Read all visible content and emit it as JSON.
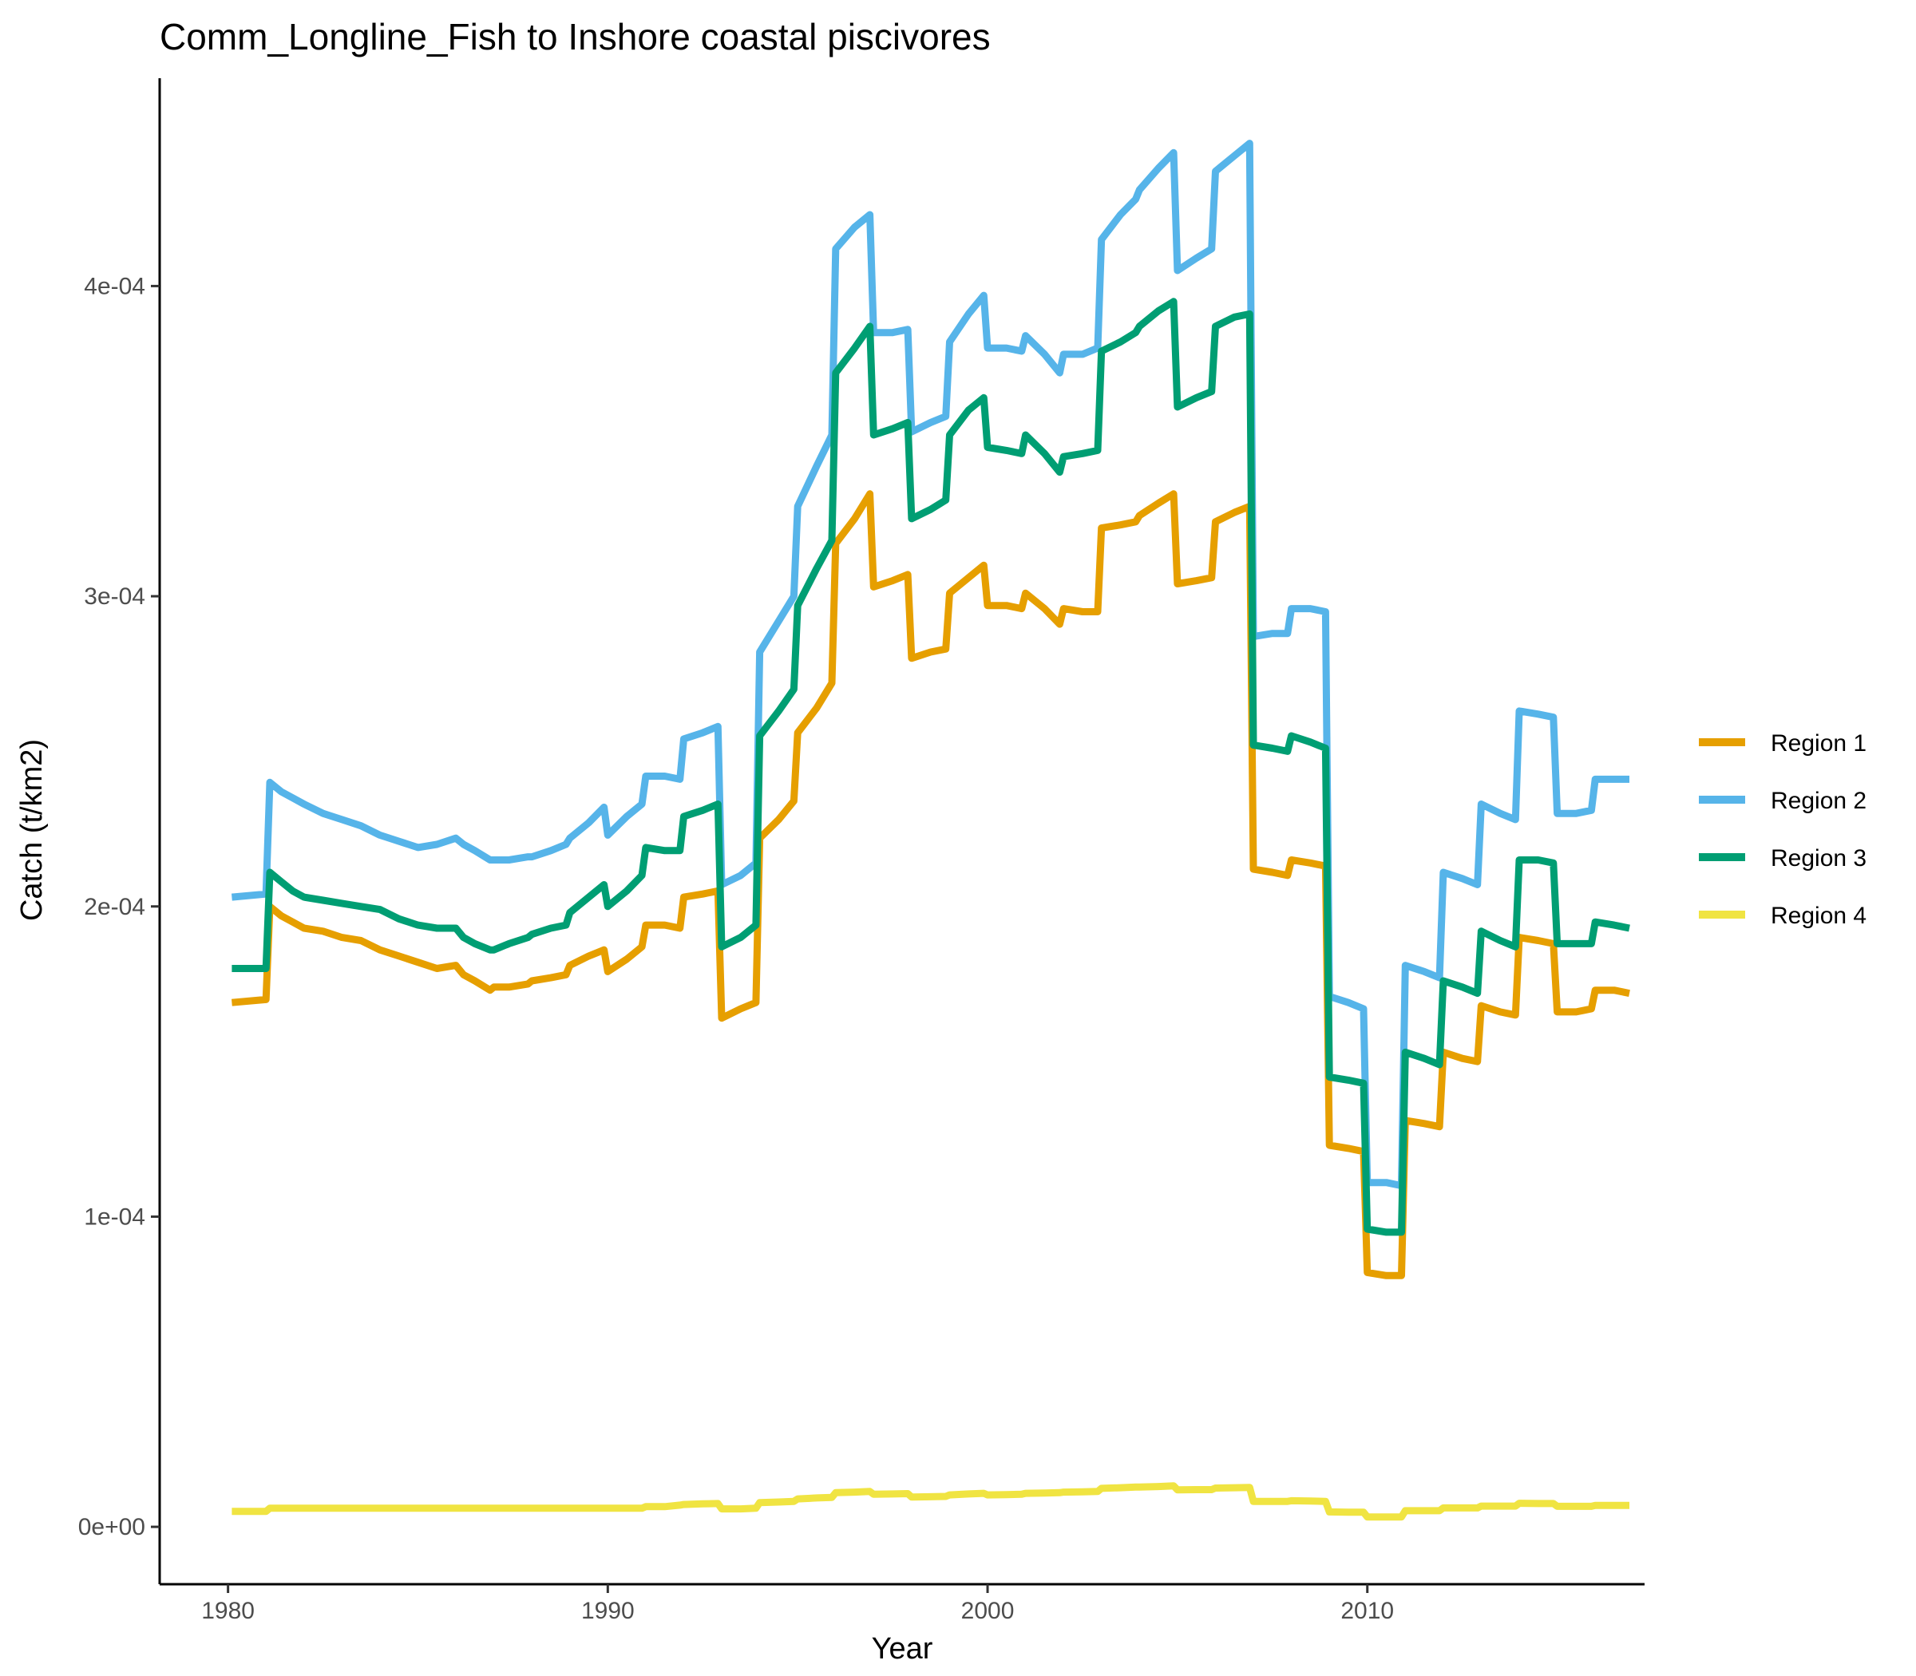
{
  "chart_data": {
    "type": "line",
    "title": "Comm_Longline_Fish to Inshore coastal piscivores",
    "xlabel": "Year",
    "ylabel": "Catch (t/km2)",
    "xlim": [
      1978.2,
      2017.3
    ],
    "ylim": [
      -1.85e-05,
      0.000467
    ],
    "x_ticks": [
      1980,
      1990,
      2000,
      2010
    ],
    "x_tick_labels": [
      "1980",
      "1990",
      "2000",
      "2010"
    ],
    "y_ticks": [
      0,
      0.0001,
      0.0002,
      0.0003,
      0.0004
    ],
    "y_tick_labels": [
      "0e+00",
      "1e-04",
      "2e-04",
      "3e-04",
      "4e-04"
    ],
    "grid": false,
    "legend_position": "right",
    "x": [
      1980.1,
      1981.0,
      1981.1,
      1981.4,
      1981.7,
      1982.0,
      1982.5,
      1983.0,
      1983.5,
      1984.0,
      1984.5,
      1985.0,
      1985.5,
      1986.0,
      1986.2,
      1986.5,
      1986.9,
      1987.0,
      1987.4,
      1987.9,
      1988.0,
      1988.5,
      1988.9,
      1989.0,
      1989.5,
      1989.9,
      1990.0,
      1990.5,
      1990.9,
      1991.0,
      1991.5,
      1991.9,
      1992.0,
      1992.5,
      1992.9,
      1993.0,
      1993.5,
      1993.9,
      1994.0,
      1994.5,
      1994.9,
      1995.0,
      1995.5,
      1995.9,
      1996.0,
      1996.5,
      1996.9,
      1997.0,
      1997.5,
      1997.9,
      1998.0,
      1998.5,
      1998.9,
      1999.0,
      1999.5,
      1999.9,
      2000.0,
      2000.5,
      2000.9,
      2001.0,
      2001.5,
      2001.9,
      2002.0,
      2002.5,
      2002.9,
      2003.0,
      2003.5,
      2003.9,
      2004.0,
      2004.5,
      2004.9,
      2005.0,
      2005.5,
      2005.9,
      2006.0,
      2006.5,
      2006.9,
      2007.0,
      2007.5,
      2007.9,
      2008.0,
      2008.5,
      2008.9,
      2009.0,
      2009.5,
      2009.9,
      2010.0,
      2010.5,
      2010.9,
      2011.0,
      2011.5,
      2011.9,
      2012.0,
      2012.5,
      2012.9,
      2013.0,
      2013.5,
      2013.9,
      2014.0,
      2014.5,
      2014.9,
      2015.0,
      2015.5,
      2015.9,
      2016.0,
      2016.5,
      2016.9
    ],
    "series": [
      {
        "name": "Region 1",
        "color": "#E69F00",
        "values": [
          0.000169,
          0.00017,
          0.0002,
          0.000197,
          0.000195,
          0.000193,
          0.000192,
          0.00019,
          0.000189,
          0.000186,
          0.000184,
          0.000182,
          0.00018,
          0.000181,
          0.000178,
          0.000176,
          0.000173,
          0.000174,
          0.000174,
          0.000175,
          0.000176,
          0.000177,
          0.000178,
          0.000181,
          0.000184,
          0.000186,
          0.000179,
          0.000183,
          0.000187,
          0.000194,
          0.000194,
          0.000193,
          0.000203,
          0.000204,
          0.000205,
          0.000164,
          0.000167,
          0.000169,
          0.000222,
          0.000228,
          0.000234,
          0.000256,
          0.000264,
          0.000272,
          0.000317,
          0.000325,
          0.000333,
          0.000303,
          0.000305,
          0.000307,
          0.00028,
          0.000282,
          0.000283,
          0.000301,
          0.000306,
          0.00031,
          0.000297,
          0.000297,
          0.000296,
          0.000301,
          0.000296,
          0.000291,
          0.000296,
          0.000295,
          0.000295,
          0.000322,
          0.000323,
          0.000324,
          0.000326,
          0.00033,
          0.000333,
          0.000304,
          0.000305,
          0.000306,
          0.000324,
          0.000327,
          0.000329,
          0.000212,
          0.000211,
          0.00021,
          0.000215,
          0.000214,
          0.000213,
          0.000123,
          0.000122,
          0.000121,
          8.2e-05,
          8.1e-05,
          8.1e-05,
          0.000131,
          0.00013,
          0.000129,
          0.000153,
          0.000151,
          0.00015,
          0.000168,
          0.000166,
          0.000165,
          0.00019,
          0.000189,
          0.000188,
          0.000166,
          0.000166,
          0.000167,
          0.000173,
          0.000173,
          0.000172
        ]
      },
      {
        "name": "Region 2",
        "color": "#56B4E9",
        "values": [
          0.000203,
          0.000204,
          0.00024,
          0.000237,
          0.000235,
          0.000233,
          0.00023,
          0.000228,
          0.000226,
          0.000223,
          0.000221,
          0.000219,
          0.00022,
          0.000222,
          0.00022,
          0.000218,
          0.000215,
          0.000215,
          0.000215,
          0.000216,
          0.000216,
          0.000218,
          0.00022,
          0.000222,
          0.000227,
          0.000232,
          0.000223,
          0.000229,
          0.000233,
          0.000242,
          0.000242,
          0.000241,
          0.000254,
          0.000256,
          0.000258,
          0.000207,
          0.00021,
          0.000214,
          0.000282,
          0.000292,
          0.0003,
          0.000329,
          0.000342,
          0.000352,
          0.000412,
          0.000419,
          0.000423,
          0.000385,
          0.000385,
          0.000386,
          0.000353,
          0.000356,
          0.000358,
          0.000382,
          0.000391,
          0.000397,
          0.00038,
          0.00038,
          0.000379,
          0.000384,
          0.000378,
          0.000372,
          0.000378,
          0.000378,
          0.00038,
          0.000415,
          0.000423,
          0.000428,
          0.000431,
          0.000438,
          0.000443,
          0.000405,
          0.000409,
          0.000412,
          0.000437,
          0.000442,
          0.000446,
          0.000287,
          0.000288,
          0.000288,
          0.000296,
          0.000296,
          0.000295,
          0.000171,
          0.000169,
          0.000167,
          0.000111,
          0.000111,
          0.00011,
          0.000181,
          0.000179,
          0.000177,
          0.000211,
          0.000209,
          0.000207,
          0.000233,
          0.00023,
          0.000228,
          0.000263,
          0.000262,
          0.000261,
          0.00023,
          0.00023,
          0.000231,
          0.000241,
          0.000241,
          0.000241
        ]
      },
      {
        "name": "Region 3",
        "color": "#009E73",
        "values": [
          0.00018,
          0.00018,
          0.000211,
          0.000208,
          0.000205,
          0.000203,
          0.000202,
          0.000201,
          0.0002,
          0.000199,
          0.000196,
          0.000194,
          0.000193,
          0.000193,
          0.00019,
          0.000188,
          0.000186,
          0.000186,
          0.000188,
          0.00019,
          0.000191,
          0.000193,
          0.000194,
          0.000198,
          0.000203,
          0.000207,
          0.0002,
          0.000205,
          0.00021,
          0.000219,
          0.000218,
          0.000218,
          0.000229,
          0.000231,
          0.000233,
          0.000187,
          0.00019,
          0.000194,
          0.000255,
          0.000263,
          0.00027,
          0.000297,
          0.000309,
          0.000318,
          0.000372,
          0.00038,
          0.000387,
          0.000352,
          0.000354,
          0.000356,
          0.000325,
          0.000328,
          0.000331,
          0.000352,
          0.00036,
          0.000364,
          0.000348,
          0.000347,
          0.000346,
          0.000352,
          0.000346,
          0.00034,
          0.000345,
          0.000346,
          0.000347,
          0.000379,
          0.000382,
          0.000385,
          0.000387,
          0.000392,
          0.000395,
          0.000361,
          0.000364,
          0.000366,
          0.000387,
          0.00039,
          0.000391,
          0.000252,
          0.000251,
          0.00025,
          0.000255,
          0.000253,
          0.000251,
          0.000145,
          0.000144,
          0.000143,
          9.6e-05,
          9.5e-05,
          9.5e-05,
          0.000153,
          0.000151,
          0.000149,
          0.000176,
          0.000174,
          0.000172,
          0.000192,
          0.000189,
          0.000187,
          0.000215,
          0.000215,
          0.000214,
          0.000188,
          0.000188,
          0.000188,
          0.000195,
          0.000194,
          0.000193
        ]
      },
      {
        "name": "Region 4",
        "color": "#F0E442",
        "values": [
          5e-06,
          5e-06,
          6e-06,
          6e-06,
          6e-06,
          6e-06,
          6e-06,
          6e-06,
          6e-06,
          6e-06,
          6e-06,
          6e-06,
          6e-06,
          6e-06,
          6e-06,
          6e-06,
          6e-06,
          6e-06,
          6e-06,
          6e-06,
          6e-06,
          6e-06,
          6e-06,
          6e-06,
          6e-06,
          6e-06,
          6e-06,
          6e-06,
          6e-06,
          6.5e-06,
          6.5e-06,
          7e-06,
          7.2e-06,
          7.4e-06,
          7.5e-06,
          5.8e-06,
          5.8e-06,
          6e-06,
          7.8e-06,
          8e-06,
          8.2e-06,
          9e-06,
          9.3e-06,
          9.5e-06,
          1.1e-05,
          1.12e-05,
          1.14e-05,
          1.05e-05,
          1.06e-05,
          1.07e-05,
          9.6e-06,
          9.7e-06,
          9.8e-06,
          1.03e-05,
          1.06e-05,
          1.08e-05,
          1.03e-05,
          1.04e-05,
          1.05e-05,
          1.08e-05,
          1.09e-05,
          1.1e-05,
          1.12e-05,
          1.13e-05,
          1.14e-05,
          1.24e-05,
          1.26e-05,
          1.28e-05,
          1.28e-05,
          1.3e-05,
          1.32e-05,
          1.19e-05,
          1.2e-05,
          1.2e-05,
          1.25e-05,
          1.26e-05,
          1.27e-05,
          8.2e-06,
          8.2e-06,
          8.2e-06,
          8.4e-06,
          8.3e-06,
          8.2e-06,
          4.8e-06,
          4.7e-06,
          4.7e-06,
          3.2e-06,
          3.2e-06,
          3.2e-06,
          5.2e-06,
          5.2e-06,
          5.2e-06,
          6.1e-06,
          6.1e-06,
          6.1e-06,
          6.7e-06,
          6.7e-06,
          6.7e-06,
          7.6e-06,
          7.5e-06,
          7.5e-06,
          6.6e-06,
          6.6e-06,
          6.6e-06,
          6.9e-06,
          6.9e-06,
          6.9e-06
        ]
      }
    ]
  }
}
